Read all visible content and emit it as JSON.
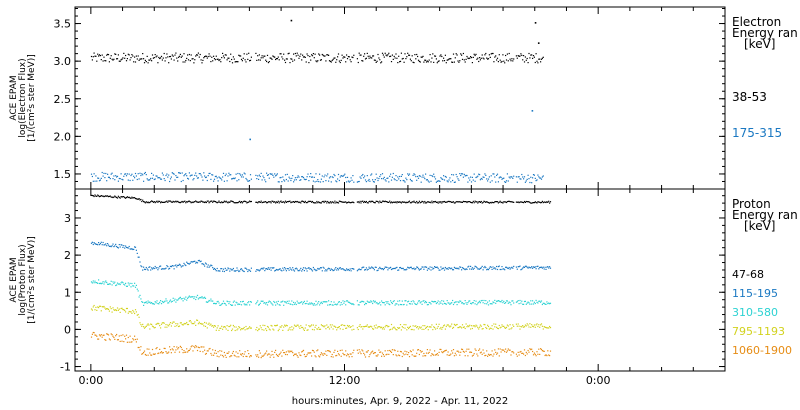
{
  "chart_data": [
    {
      "type": "scatter",
      "ylabel_lines": [
        "ACE EPAM",
        "log(Electron Flux)",
        "[1/(cm²s ster MeV)]"
      ],
      "ylim": [
        1.3,
        3.72
      ],
      "yticks": [
        "3.5",
        "3.0",
        "2.5",
        "2.0",
        "1.5"
      ],
      "ytick_values": [
        3.5,
        3.0,
        2.5,
        2.0,
        1.5
      ],
      "legend_title_lines": [
        "Electron",
        "Energy ran",
        "[keV]"
      ],
      "series": [
        {
          "name": "38-53",
          "color": "#000000",
          "base": 3.05,
          "noise": 0.13,
          "x_end": 42.8,
          "segments": [
            [
              0,
              3.05
            ],
            [
              42.8,
              3.05
            ]
          ],
          "outliers": [
            [
              18.9,
              3.55
            ],
            [
              42.0,
              3.52
            ],
            [
              42.3,
              3.25
            ]
          ]
        },
        {
          "name": "175-315",
          "color": "#1a78c2",
          "base": 1.45,
          "noise": 0.12,
          "x_end": 42.8,
          "segments": [
            [
              0,
              1.47
            ],
            [
              42.8,
              1.45
            ]
          ],
          "outliers": [
            [
              15.0,
              1.97
            ],
            [
              41.7,
              2.35
            ]
          ]
        }
      ]
    },
    {
      "type": "scatter",
      "ylabel_lines": [
        "ACE EPAM",
        "log(Proton Flux)",
        "[1/(cm²s ster MeV)]"
      ],
      "ylim": [
        -1.12,
        3.78
      ],
      "yticks": [
        "3",
        "2",
        "1",
        "0",
        "-1"
      ],
      "ytick_values": [
        3,
        2,
        1,
        0,
        -1
      ],
      "legend_title_lines": [
        "Proton",
        "Energy ran",
        "[keV]"
      ],
      "series": [
        {
          "name": "47-68",
          "color": "#000000",
          "noise": 0.05,
          "x_end": 43.5,
          "segments": [
            [
              0,
              3.62
            ],
            [
              4.3,
              3.55
            ],
            [
              5.0,
              3.45
            ],
            [
              43.5,
              3.44
            ]
          ],
          "outliers": []
        },
        {
          "name": "115-195",
          "color": "#1a78c2",
          "noise": 0.1,
          "x_end": 43.5,
          "segments": [
            [
              0,
              2.35
            ],
            [
              4.2,
              2.2
            ],
            [
              4.8,
              1.65
            ],
            [
              8.0,
              1.7
            ],
            [
              10.0,
              1.85
            ],
            [
              12.0,
              1.62
            ],
            [
              43.5,
              1.68
            ]
          ],
          "outliers": []
        },
        {
          "name": "310-580",
          "color": "#2cd2d2",
          "noise": 0.12,
          "x_end": 43.5,
          "segments": [
            [
              0,
              1.32
            ],
            [
              4.2,
              1.2
            ],
            [
              4.8,
              0.7
            ],
            [
              10.0,
              0.88
            ],
            [
              12.0,
              0.72
            ],
            [
              43.5,
              0.74
            ]
          ],
          "outliers": []
        },
        {
          "name": "795-1193",
          "color": "#d2d21e",
          "noise": 0.15,
          "x_end": 43.5,
          "segments": [
            [
              0,
              0.6
            ],
            [
              4.2,
              0.5
            ],
            [
              4.8,
              0.08
            ],
            [
              10.0,
              0.2
            ],
            [
              12.0,
              0.05
            ],
            [
              43.5,
              0.1
            ]
          ],
          "outliers": []
        },
        {
          "name": "1060-1900",
          "color": "#e68c14",
          "noise": 0.2,
          "x_end": 43.5,
          "segments": [
            [
              0,
              -0.15
            ],
            [
              4.2,
              -0.25
            ],
            [
              4.8,
              -0.6
            ],
            [
              10.0,
              -0.5
            ],
            [
              12.0,
              -0.65
            ],
            [
              43.5,
              -0.6
            ]
          ],
          "outliers": []
        }
      ]
    }
  ],
  "x_axis": {
    "xlim": [
      -1.5,
      60
    ],
    "ticks": [
      {
        "x": 0,
        "label": "0:00"
      },
      {
        "x": 24,
        "label": "12:00"
      },
      {
        "x": 48,
        "label": "0:00"
      }
    ],
    "minor_step": 3,
    "label": "hours:minutes, Apr.  9, 2022 - Apr. 11, 2022"
  }
}
